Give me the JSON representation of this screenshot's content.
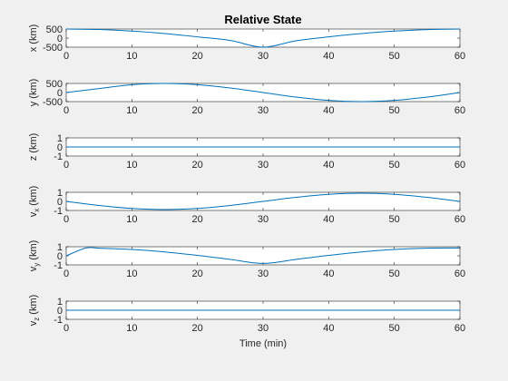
{
  "chart_data": {
    "type": "line",
    "title": "Relative State",
    "xlabel": "Time (min)",
    "xlim": [
      0,
      60
    ],
    "xticks": [
      0,
      10,
      20,
      30,
      40,
      50,
      60
    ],
    "line_color": "#0072bd",
    "grid": false,
    "panels": [
      {
        "ylabel": "x (km)",
        "ylim": [
          -500,
          500
        ],
        "yticks": [
          -500,
          0,
          500
        ],
        "series": [
          {
            "x": [
              0,
              5,
              10,
              15,
              20,
              25,
              30,
              35,
              40,
              45,
              50,
              55,
              60
            ],
            "y": [
              500,
              472,
              387,
              250,
              70,
              -130,
              -500,
              -150,
              70,
              250,
              387,
              470,
              500
            ]
          }
        ]
      },
      {
        "ylabel": "y (km)",
        "ylim": [
          -500,
          500
        ],
        "yticks": [
          -500,
          0,
          500
        ],
        "series": [
          {
            "x": [
              0,
              5,
              10,
              15,
              20,
              25,
              30,
              35,
              40,
              45,
              50,
              55,
              60
            ],
            "y": [
              0,
              217,
              433,
              500,
              433,
              250,
              0,
              -250,
              -433,
              -500,
              -433,
              -250,
              0
            ]
          }
        ]
      },
      {
        "ylabel": "z (km)",
        "ylim": [
          -1,
          1
        ],
        "yticks": [
          -1,
          0,
          1
        ],
        "series": [
          {
            "x": [
              0,
              60
            ],
            "y": [
              0,
              0
            ]
          }
        ]
      },
      {
        "ylabel": "v_x (km)",
        "ylabel_main": "v",
        "ylabel_sub": "x",
        "ylabel_rest": " (km)",
        "ylim": [
          -1,
          1
        ],
        "yticks": [
          -1,
          0,
          1
        ],
        "series": [
          {
            "x": [
              0,
              5,
              10,
              15,
              20,
              25,
              30,
              35,
              40,
              45,
              50,
              55,
              60
            ],
            "y": [
              0,
              -0.45,
              -0.78,
              -0.9,
              -0.78,
              -0.45,
              0,
              0.45,
              0.78,
              0.9,
              0.78,
              0.45,
              0
            ]
          }
        ]
      },
      {
        "ylabel": "v_y (km)",
        "ylabel_main": "v",
        "ylabel_sub": "y",
        "ylabel_rest": " (km)",
        "ylim": [
          -1,
          1
        ],
        "yticks": [
          -1,
          0,
          1
        ],
        "series": [
          {
            "x": [
              0,
              3,
              5,
              10,
              15,
              20,
              25,
              30,
              35,
              40,
              45,
              50,
              55,
              60
            ],
            "y": [
              0,
              0.86,
              0.84,
              0.7,
              0.43,
              0.05,
              -0.4,
              -0.84,
              -0.4,
              0.05,
              0.43,
              0.7,
              0.84,
              0.86
            ]
          }
        ]
      },
      {
        "ylabel": "v_z (km)",
        "ylabel_main": "v",
        "ylabel_sub": "z",
        "ylabel_rest": " (km)",
        "ylim": [
          -1,
          1
        ],
        "yticks": [
          -1,
          0,
          1
        ],
        "series": [
          {
            "x": [
              0,
              60
            ],
            "y": [
              0,
              0
            ]
          }
        ]
      }
    ]
  }
}
